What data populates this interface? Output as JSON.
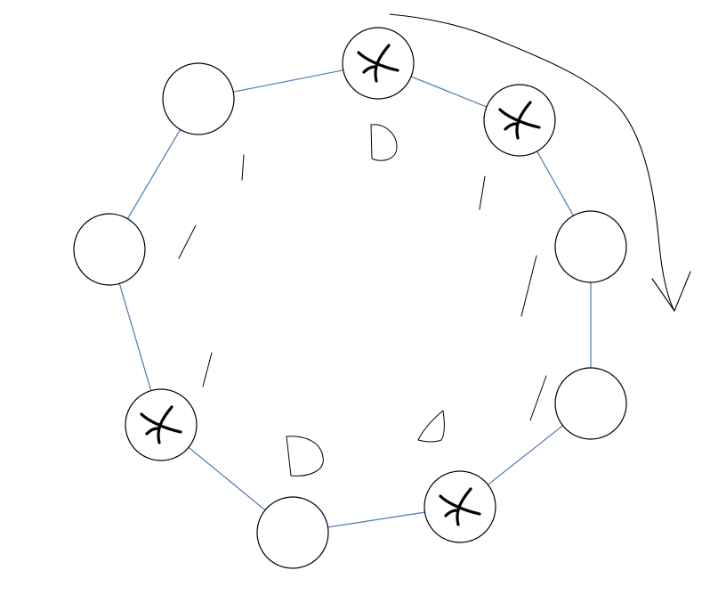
{
  "diagram": {
    "colors": {
      "background": "#ffffff",
      "edge": "#4a7ab5",
      "node_fill": "#ffffff",
      "node_stroke": "#000000",
      "mark": "#000000",
      "doodle": "#000000"
    },
    "nodes": [
      {
        "id": "n1",
        "marked": true
      },
      {
        "id": "n2",
        "marked": true
      },
      {
        "id": "n3",
        "marked": false
      },
      {
        "id": "n4",
        "marked": false
      },
      {
        "id": "n5",
        "marked": true
      },
      {
        "id": "n6",
        "marked": false
      },
      {
        "id": "n7",
        "marked": true
      },
      {
        "id": "n8",
        "marked": false
      },
      {
        "id": "n9",
        "marked": false
      }
    ],
    "edges": [
      [
        "n1",
        "n2"
      ],
      [
        "n2",
        "n3"
      ],
      [
        "n3",
        "n4"
      ],
      [
        "n4",
        "n5"
      ],
      [
        "n5",
        "n6"
      ],
      [
        "n6",
        "n7"
      ],
      [
        "n7",
        "n8"
      ],
      [
        "n8",
        "n9"
      ],
      [
        "n9",
        "n1"
      ]
    ],
    "rotation_direction": "clockwise"
  }
}
